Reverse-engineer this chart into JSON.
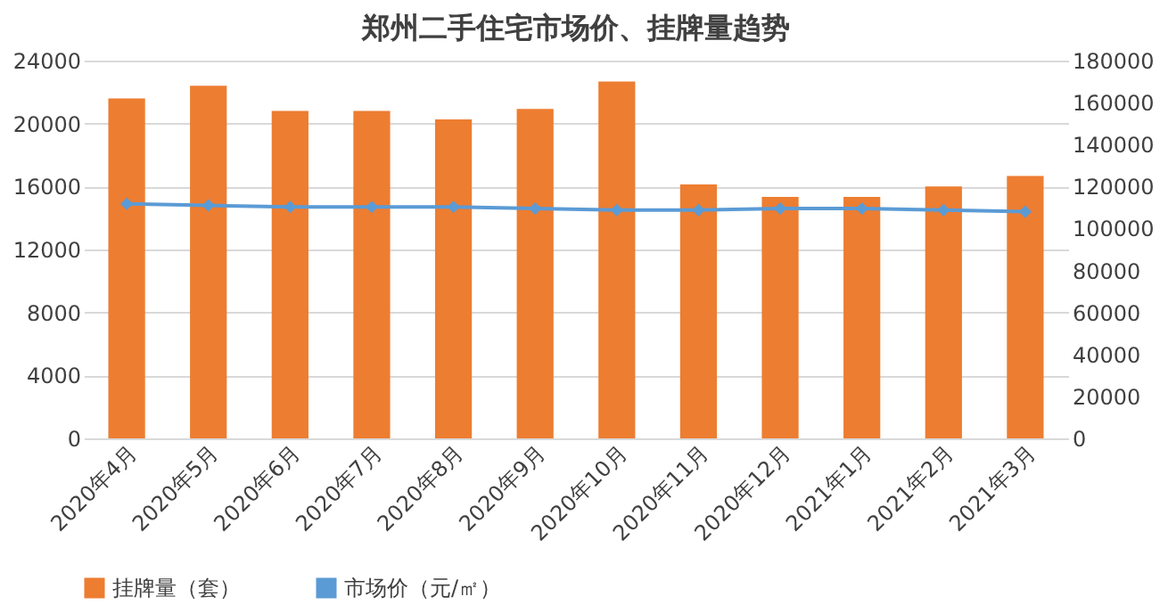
{
  "chart_data": {
    "type": "bar",
    "title": "郑州二手住宅市场价、挂牌量趋势",
    "categories": [
      "2020年4月",
      "2020年5月",
      "2020年6月",
      "2020年7月",
      "2020年8月",
      "2020年9月",
      "2020年10月",
      "2020年11月",
      "2020年12月",
      "2021年1月",
      "2021年2月",
      "2021年3月"
    ],
    "series": [
      {
        "name": "挂牌量（套）",
        "axis": "y2",
        "color": "#ed7d31",
        "values": [
          162000,
          168000,
          156000,
          156000,
          152000,
          157000,
          170000,
          121000,
          115000,
          115000,
          120000,
          125000
        ]
      },
      {
        "name": "市场价（元/㎡）",
        "type": "line",
        "color": "#5b9bd5",
        "marker": "diamond",
        "values": [
          14900,
          14800,
          14700,
          14700,
          14700,
          14600,
          14500,
          14500,
          14600,
          14600,
          14500,
          14400
        ]
      }
    ],
    "ylim": [
      0,
      24000
    ],
    "yticks": [
      0,
      4000,
      8000,
      12000,
      16000,
      20000,
      24000
    ],
    "y2lim": [
      0,
      180000
    ],
    "y2ticks": [
      0,
      20000,
      40000,
      60000,
      80000,
      100000,
      120000,
      140000,
      160000,
      180000
    ],
    "grid": "y",
    "legend": "bottom"
  }
}
